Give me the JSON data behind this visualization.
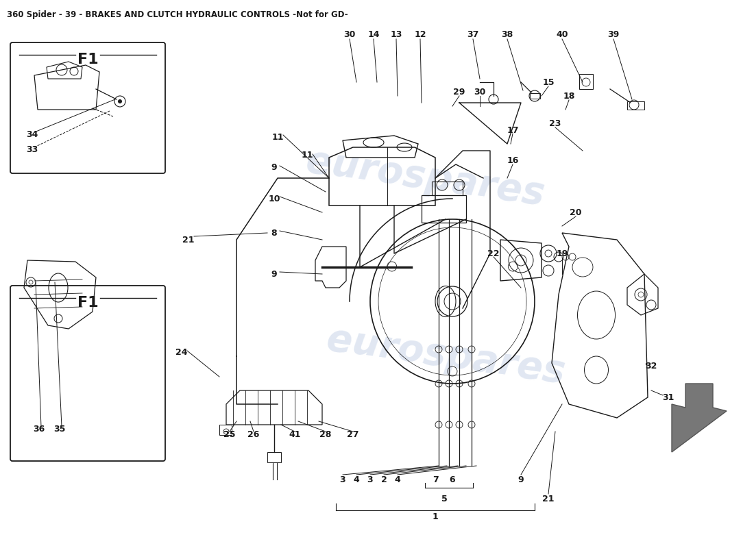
{
  "title": "360 Spider - 39 - BRAKES AND CLUTCH HYDRAULIC CONTROLS -Not for GD-",
  "title_fontsize": 8.5,
  "bg_color": "#ffffff",
  "line_color": "#1a1a1a",
  "watermark_color": "#c8d4e8",
  "fig_width": 11.0,
  "fig_height": 8.0,
  "dpi": 100,
  "wm_text": "eurospares"
}
